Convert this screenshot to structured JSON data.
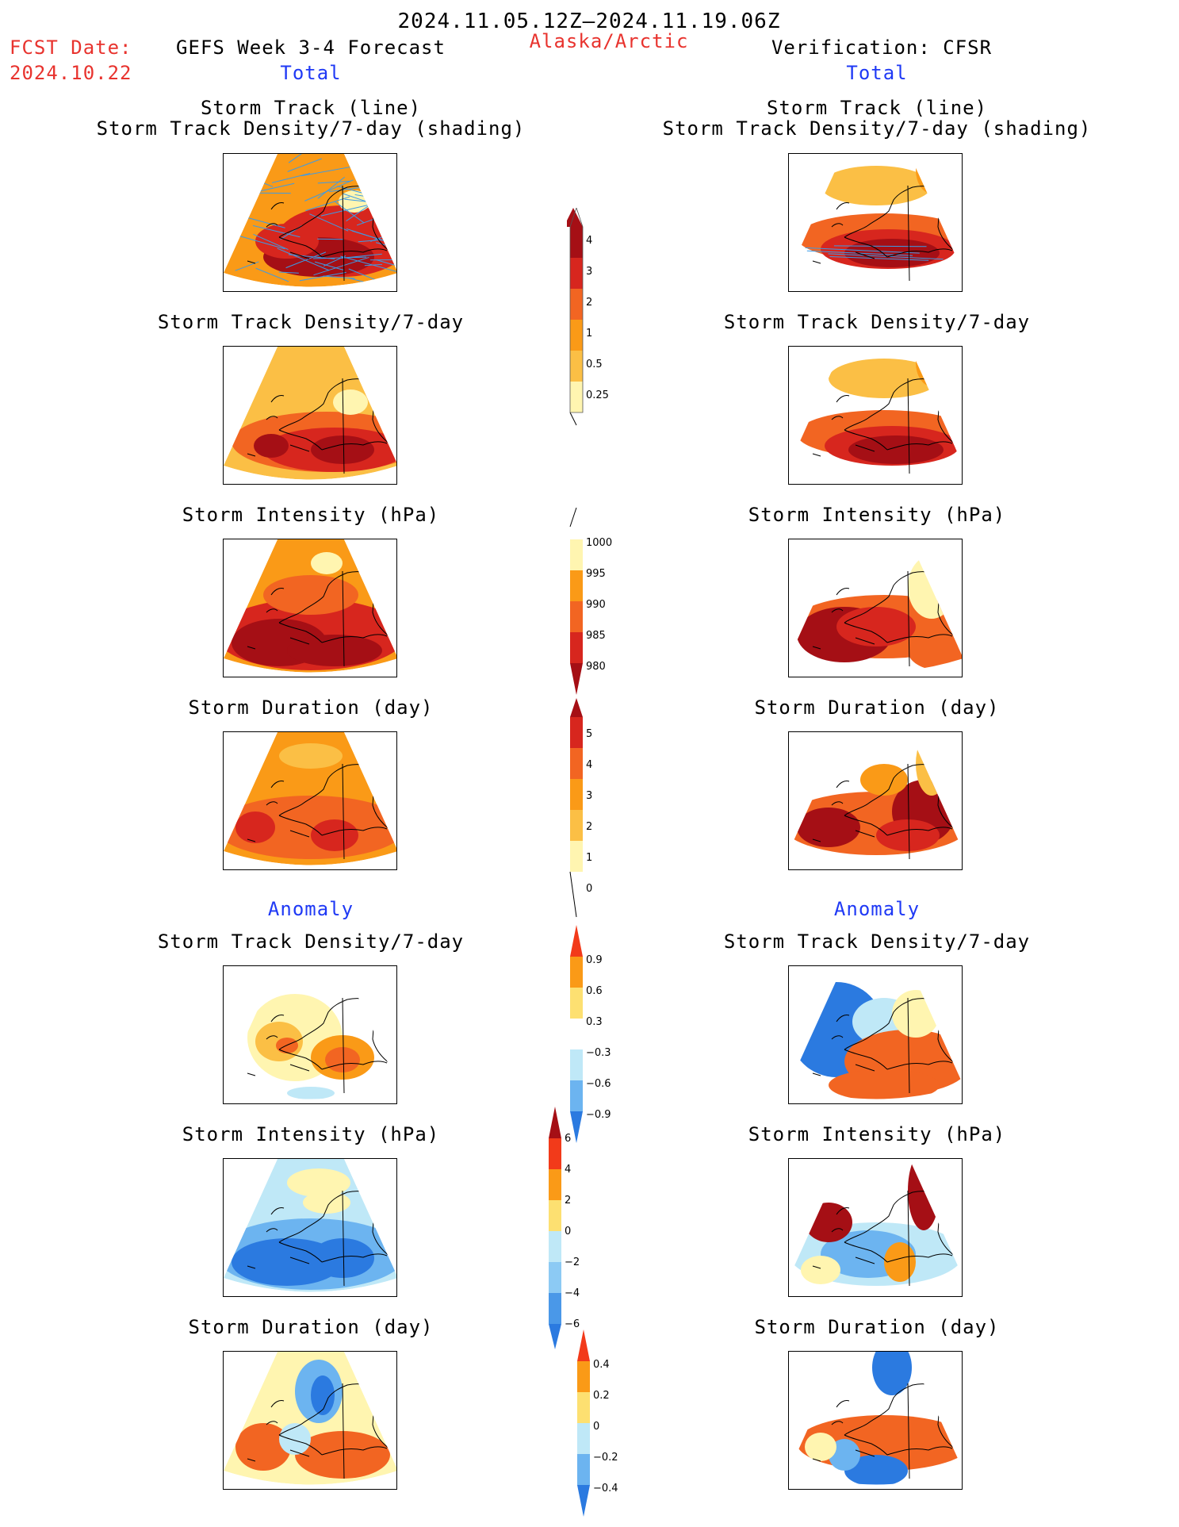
{
  "header": {
    "period": "2024.11.05.12Z–2024.11.19.06Z",
    "fcst_label": "FCST Date:",
    "fcst_date": "2024.10.22",
    "left_title": "GEFS Week 3-4 Forecast",
    "region": "Alaska/Arctic",
    "right_title": "Verification: CFSR"
  },
  "sections": {
    "total": "Total",
    "anomaly": "Anomaly"
  },
  "panel_titles": {
    "track_line": "Storm Track (line)",
    "track_density_shading": "Storm Track Density/7-day (shading)",
    "track_density": "Storm Track Density/7-day",
    "intensity": "Storm Intensity (hPa)",
    "duration": "Storm Duration (day)"
  },
  "colorbars": {
    "density_total": [
      "4",
      "3",
      "2",
      "1",
      "0.5",
      "0.25"
    ],
    "intensity_total": [
      "1000",
      "995",
      "990",
      "985",
      "980"
    ],
    "duration_total": [
      "5",
      "4",
      "3",
      "2",
      "1",
      "0"
    ],
    "density_anom": [
      "0.9",
      "0.6",
      "0.3",
      "−0.3",
      "−0.6",
      "−0.9"
    ],
    "intensity_anom": [
      "6",
      "4",
      "2",
      "0",
      "−2",
      "−4",
      "−6"
    ],
    "duration_anom": [
      "0.4",
      "0.2",
      "0",
      "−0.2",
      "−0.4"
    ]
  },
  "colors": {
    "dark_red": "#a50f15",
    "red": "#d7261e",
    "orange_red": "#f26522",
    "orange": "#fa9a17",
    "light_orange": "#fbbf45",
    "pale_yellow": "#fff5b0",
    "light_blue": "#bfe8f7",
    "mid_blue": "#6cb4f0",
    "blue": "#2b7ae0",
    "track_line": "#3c9be6"
  }
}
